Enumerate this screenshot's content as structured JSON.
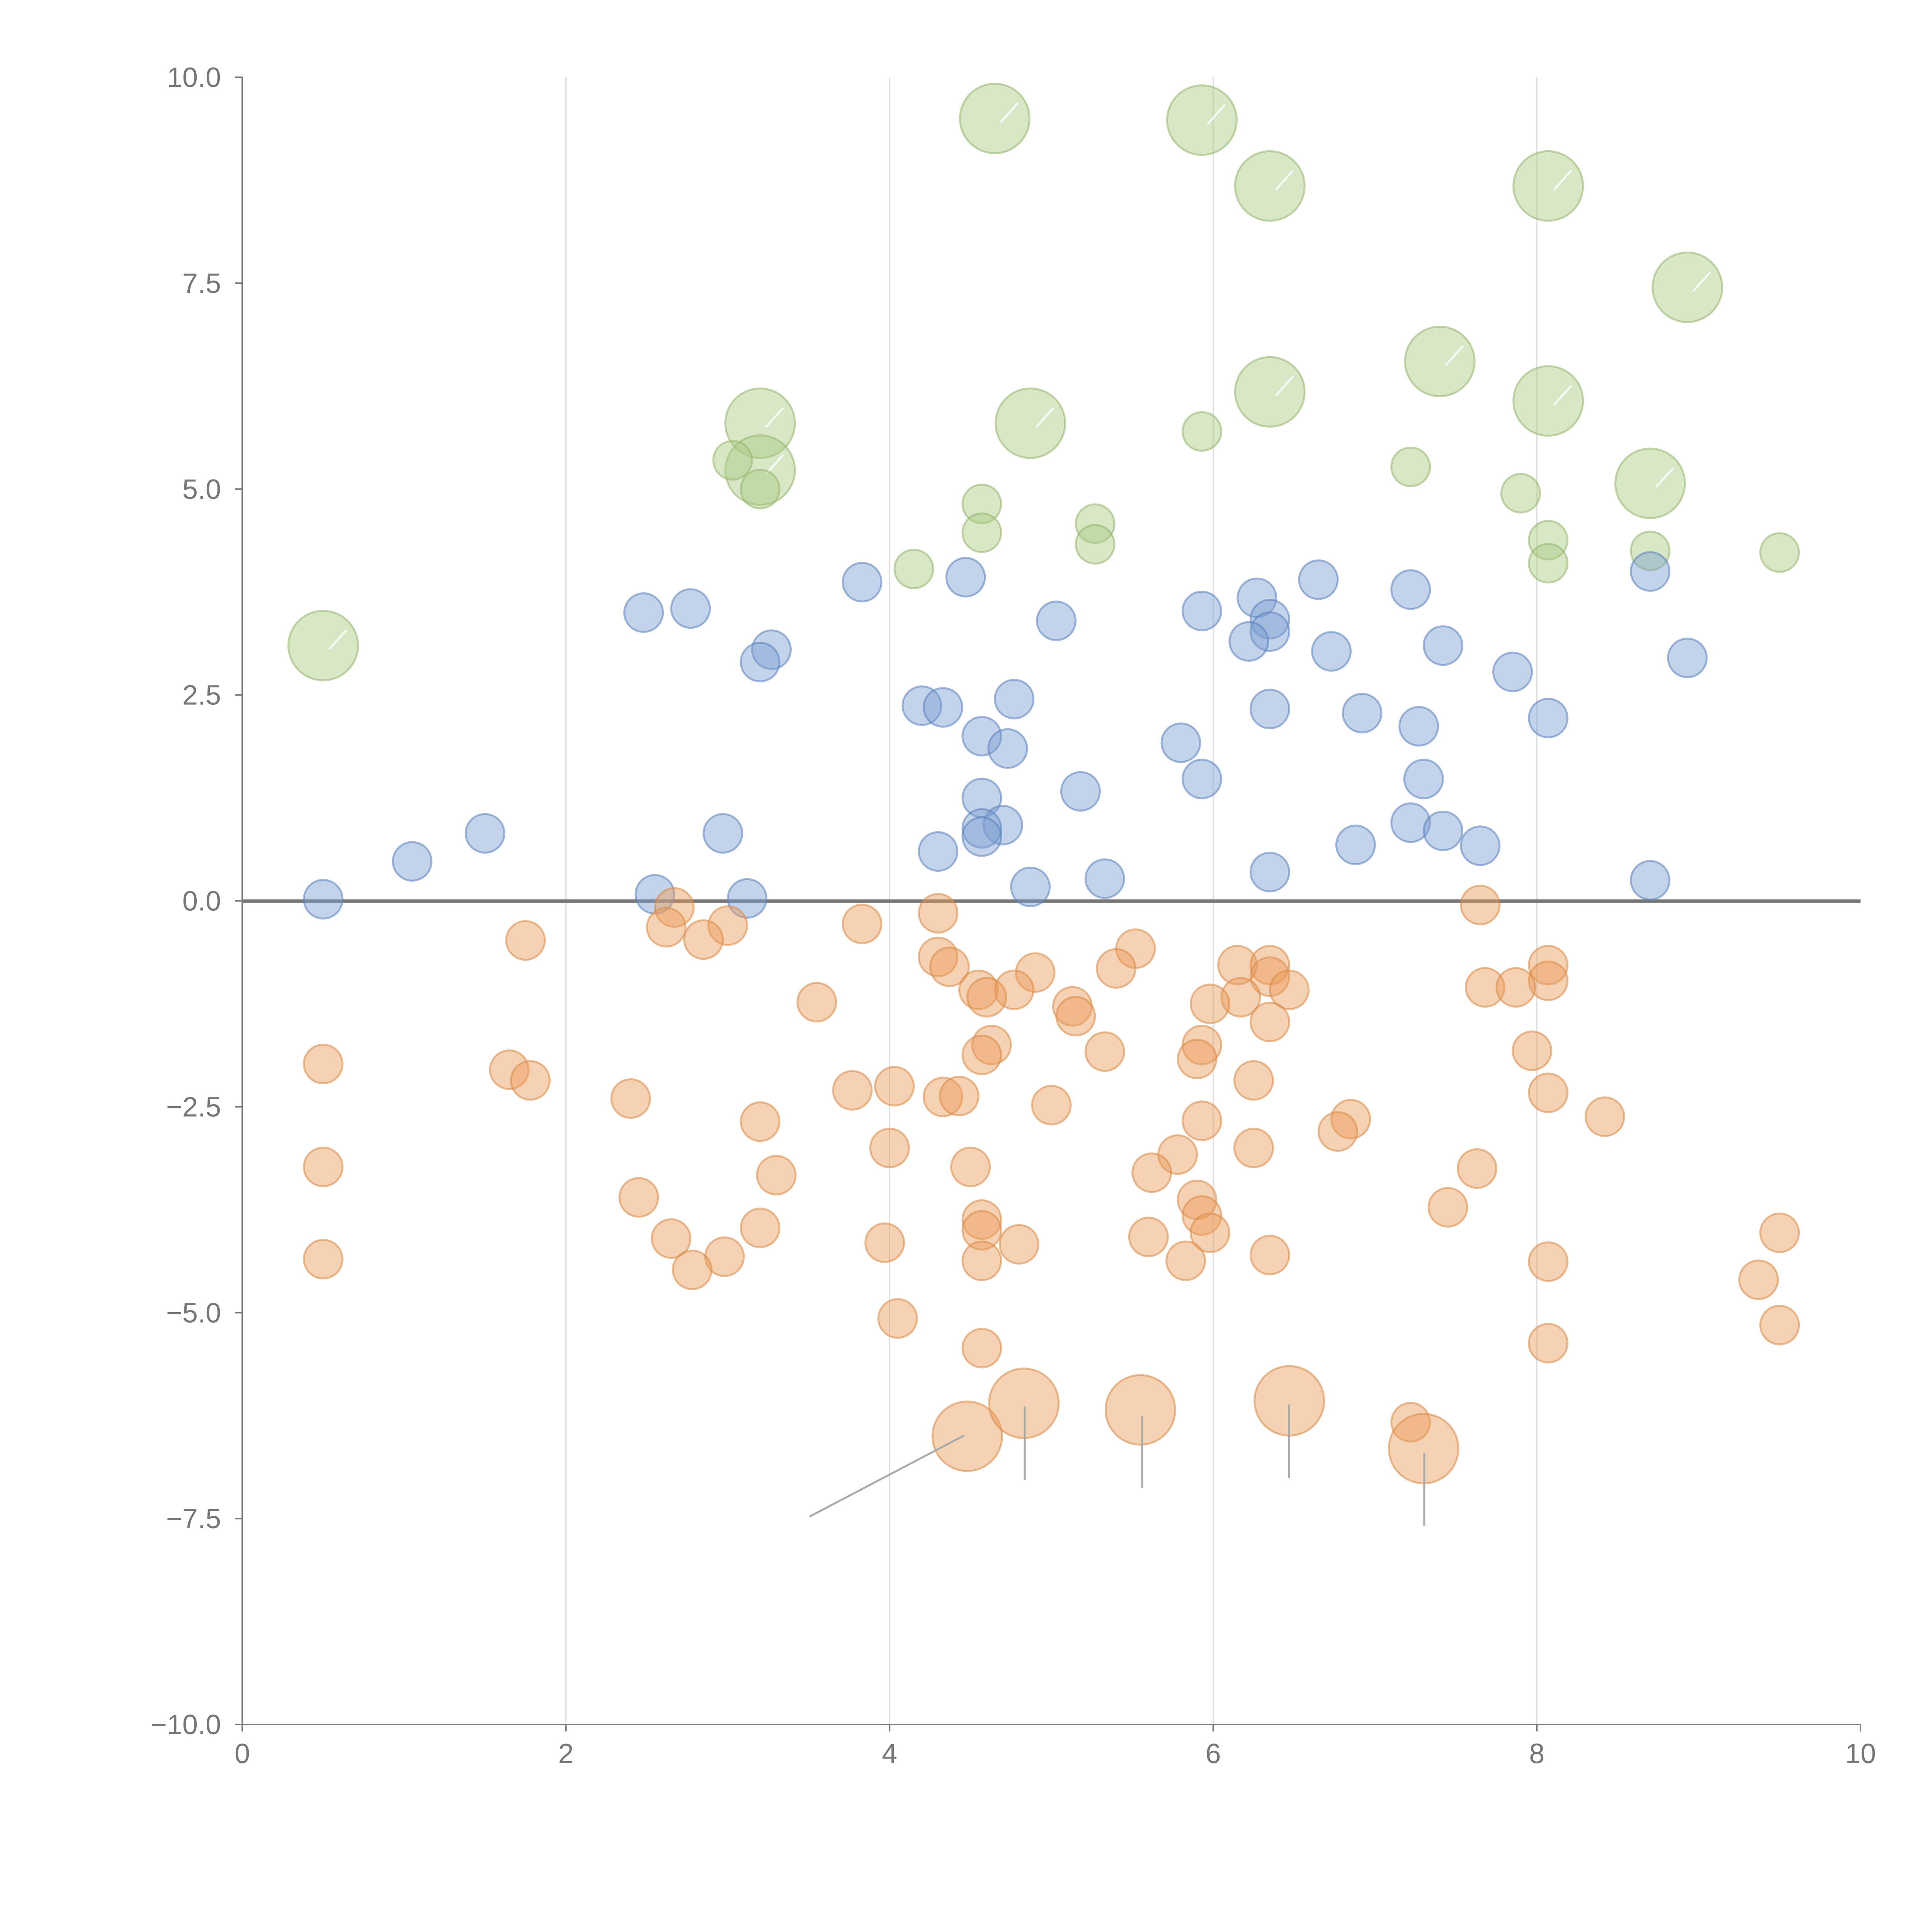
{
  "chart_data": {
    "type": "scatter",
    "title": "",
    "xlabel": "",
    "ylabel": "",
    "xlim": [
      0,
      10
    ],
    "ylim": [
      -10,
      10
    ],
    "grid": "vertical",
    "x_ticks": [
      "0",
      "2",
      "4",
      "6",
      "8",
      "10"
    ],
    "y_ticks": [
      "10.0",
      "7.5",
      "5.0",
      "2.5",
      "0.0",
      "−2.5",
      "−5.0",
      "−7.5",
      "−10.0"
    ],
    "series": [
      {
        "name": "green",
        "color": "#a9c981",
        "stroke": "#95b56c",
        "points": [
          [
            4.65,
            9.5,
            2
          ],
          [
            5.93,
            9.48,
            2
          ],
          [
            6.35,
            8.68,
            2
          ],
          [
            8.07,
            8.68,
            2
          ],
          [
            8.93,
            7.45,
            2
          ],
          [
            7.4,
            6.55,
            2
          ],
          [
            6.35,
            6.18,
            2
          ],
          [
            8.07,
            6.07,
            2
          ],
          [
            3.2,
            5.8,
            2
          ],
          [
            4.87,
            5.8,
            2
          ],
          [
            3.2,
            5.23,
            2
          ],
          [
            8.7,
            5.07,
            2
          ],
          [
            0.5,
            3.1,
            2
          ],
          [
            5.93,
            5.7,
            1
          ],
          [
            3.03,
            5.35,
            1
          ],
          [
            7.22,
            5.27,
            1
          ],
          [
            3.2,
            5.0,
            1
          ],
          [
            7.9,
            4.95,
            1
          ],
          [
            4.57,
            4.82,
            1
          ],
          [
            5.27,
            4.58,
            1
          ],
          [
            4.57,
            4.47,
            1
          ],
          [
            8.07,
            4.38,
            1
          ],
          [
            5.27,
            4.33,
            1
          ],
          [
            8.7,
            4.25,
            1
          ],
          [
            9.5,
            4.23,
            1
          ],
          [
            8.07,
            4.1,
            1
          ],
          [
            4.15,
            4.03,
            1
          ]
        ]
      },
      {
        "name": "blue",
        "color": "#7b9dd1",
        "stroke": "#5a7fbd",
        "points": [
          [
            3.83,
            3.87,
            1
          ],
          [
            4.47,
            3.93,
            1
          ],
          [
            6.65,
            3.9,
            1
          ],
          [
            7.22,
            3.78,
            1
          ],
          [
            6.27,
            3.68,
            1
          ],
          [
            8.7,
            4.0,
            1
          ],
          [
            2.77,
            3.55,
            1
          ],
          [
            2.48,
            3.5,
            1
          ],
          [
            5.93,
            3.52,
            1
          ],
          [
            6.35,
            3.42,
            1
          ],
          [
            5.03,
            3.4,
            1
          ],
          [
            6.35,
            3.27,
            1
          ],
          [
            6.22,
            3.15,
            1
          ],
          [
            7.42,
            3.1,
            1
          ],
          [
            3.27,
            3.05,
            1
          ],
          [
            6.73,
            3.03,
            1
          ],
          [
            8.93,
            2.95,
            1
          ],
          [
            3.2,
            2.9,
            1
          ],
          [
            7.85,
            2.78,
            1
          ],
          [
            4.77,
            2.45,
            1
          ],
          [
            4.2,
            2.37,
            1
          ],
          [
            4.33,
            2.35,
            1
          ],
          [
            6.35,
            2.33,
            1
          ],
          [
            6.92,
            2.28,
            1
          ],
          [
            8.07,
            2.22,
            1
          ],
          [
            7.27,
            2.12,
            1
          ],
          [
            4.57,
            2.0,
            1
          ],
          [
            5.8,
            1.92,
            1
          ],
          [
            4.73,
            1.85,
            1
          ],
          [
            5.93,
            1.48,
            1
          ],
          [
            7.3,
            1.48,
            1
          ],
          [
            5.18,
            1.33,
            1
          ],
          [
            4.57,
            1.25,
            1
          ],
          [
            7.22,
            0.95,
            1
          ],
          [
            4.7,
            0.92,
            1
          ],
          [
            4.57,
            0.88,
            1
          ],
          [
            7.42,
            0.85,
            1
          ],
          [
            1.5,
            0.82,
            1
          ],
          [
            2.97,
            0.82,
            1
          ],
          [
            4.57,
            0.78,
            1
          ],
          [
            6.88,
            0.68,
            1
          ],
          [
            7.65,
            0.67,
            1
          ],
          [
            4.3,
            0.6,
            1
          ],
          [
            1.05,
            0.48,
            1
          ],
          [
            6.35,
            0.35,
            1
          ],
          [
            5.33,
            0.27,
            1
          ],
          [
            8.7,
            0.25,
            1
          ],
          [
            4.87,
            0.17,
            1
          ],
          [
            2.55,
            0.08,
            1
          ],
          [
            3.12,
            0.03,
            1
          ],
          [
            0.5,
            0.02,
            1
          ]
        ]
      },
      {
        "name": "orange",
        "color": "#ec9c58",
        "stroke": "#d98845",
        "points": [
          [
            7.65,
            -0.05,
            1
          ],
          [
            2.67,
            -0.08,
            1
          ],
          [
            4.3,
            -0.15,
            1
          ],
          [
            3.83,
            -0.28,
            1
          ],
          [
            3.0,
            -0.3,
            1
          ],
          [
            2.62,
            -0.32,
            1
          ],
          [
            2.85,
            -0.47,
            1
          ],
          [
            1.75,
            -0.48,
            1
          ],
          [
            5.52,
            -0.58,
            1
          ],
          [
            4.3,
            -0.68,
            1
          ],
          [
            6.15,
            -0.78,
            1
          ],
          [
            6.35,
            -0.78,
            1
          ],
          [
            4.37,
            -0.8,
            1
          ],
          [
            8.07,
            -0.78,
            1
          ],
          [
            5.4,
            -0.82,
            1
          ],
          [
            4.9,
            -0.87,
            1
          ],
          [
            6.35,
            -0.92,
            1
          ],
          [
            8.07,
            -0.97,
            1
          ],
          [
            7.68,
            -1.05,
            1
          ],
          [
            7.87,
            -1.05,
            1
          ],
          [
            4.55,
            -1.08,
            1
          ],
          [
            4.77,
            -1.08,
            1
          ],
          [
            6.47,
            -1.08,
            1
          ],
          [
            6.17,
            -1.17,
            1
          ],
          [
            4.6,
            -1.17,
            1
          ],
          [
            3.55,
            -1.23,
            1
          ],
          [
            5.98,
            -1.25,
            1
          ],
          [
            5.13,
            -1.28,
            1
          ],
          [
            5.15,
            -1.4,
            1
          ],
          [
            6.35,
            -1.47,
            1
          ],
          [
            4.63,
            -1.75,
            1
          ],
          [
            5.93,
            -1.75,
            1
          ],
          [
            7.97,
            -1.82,
            1
          ],
          [
            5.33,
            -1.83,
            1
          ],
          [
            4.57,
            -1.87,
            1
          ],
          [
            5.9,
            -1.92,
            1
          ],
          [
            0.5,
            -1.98,
            1
          ],
          [
            1.65,
            -2.05,
            1
          ],
          [
            1.78,
            -2.18,
            1
          ],
          [
            6.25,
            -2.18,
            1
          ],
          [
            4.03,
            -2.25,
            1
          ],
          [
            3.77,
            -2.3,
            1
          ],
          [
            8.07,
            -2.33,
            1
          ],
          [
            4.33,
            -2.38,
            1
          ],
          [
            4.43,
            -2.37,
            1
          ],
          [
            2.4,
            -2.4,
            1
          ],
          [
            5.0,
            -2.48,
            1
          ],
          [
            8.42,
            -2.62,
            1
          ],
          [
            6.85,
            -2.65,
            1
          ],
          [
            5.93,
            -2.67,
            1
          ],
          [
            3.2,
            -2.68,
            1
          ],
          [
            6.77,
            -2.8,
            1
          ],
          [
            4.0,
            -3.0,
            1
          ],
          [
            6.25,
            -3.0,
            1
          ],
          [
            5.78,
            -3.08,
            1
          ],
          [
            4.5,
            -3.23,
            1
          ],
          [
            0.5,
            -3.23,
            1
          ],
          [
            7.63,
            -3.25,
            1
          ],
          [
            5.62,
            -3.3,
            1
          ],
          [
            3.3,
            -3.33,
            1
          ],
          [
            2.45,
            -3.6,
            1
          ],
          [
            5.9,
            -3.63,
            1
          ],
          [
            7.45,
            -3.72,
            1
          ],
          [
            5.93,
            -3.82,
            1
          ],
          [
            4.57,
            -3.87,
            1
          ],
          [
            3.2,
            -3.97,
            1
          ],
          [
            4.57,
            -4.0,
            1
          ],
          [
            5.98,
            -4.03,
            1
          ],
          [
            5.6,
            -4.08,
            1
          ],
          [
            9.5,
            -4.03,
            1
          ],
          [
            2.65,
            -4.1,
            1
          ],
          [
            3.97,
            -4.15,
            1
          ],
          [
            4.8,
            -4.17,
            1
          ],
          [
            6.35,
            -4.3,
            1
          ],
          [
            2.98,
            -4.32,
            1
          ],
          [
            0.5,
            -4.35,
            1
          ],
          [
            5.83,
            -4.37,
            1
          ],
          [
            4.57,
            -4.37,
            1
          ],
          [
            8.07,
            -4.38,
            1
          ],
          [
            2.78,
            -4.48,
            1
          ],
          [
            9.37,
            -4.6,
            1
          ],
          [
            4.05,
            -5.07,
            1
          ],
          [
            9.5,
            -5.15,
            1
          ],
          [
            8.07,
            -5.37,
            1
          ],
          [
            4.57,
            -5.43,
            1
          ],
          [
            7.22,
            -6.33,
            1
          ],
          [
            4.48,
            -6.5,
            2
          ],
          [
            4.83,
            -6.1,
            2
          ],
          [
            5.55,
            -6.18,
            2
          ],
          [
            6.47,
            -6.07,
            2
          ],
          [
            7.3,
            -6.65,
            2
          ]
        ]
      }
    ]
  }
}
